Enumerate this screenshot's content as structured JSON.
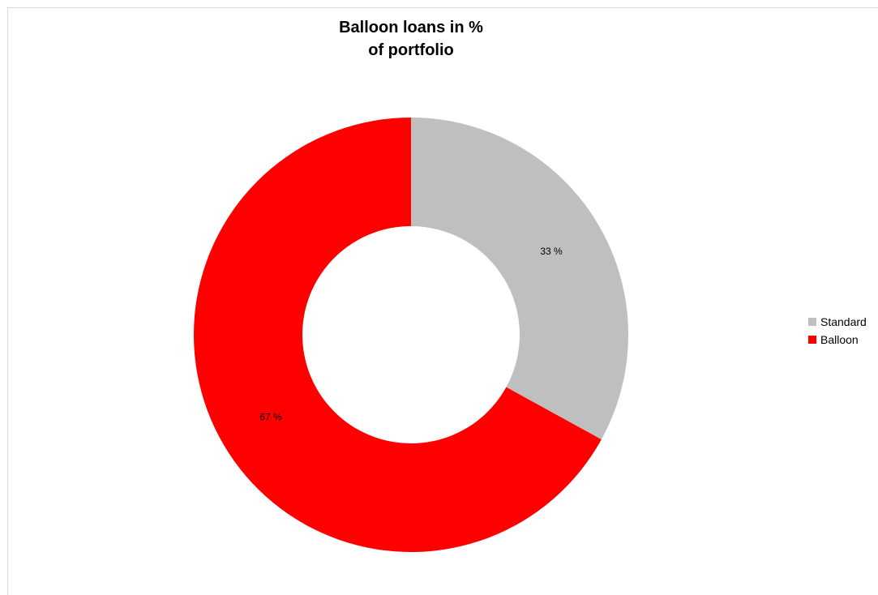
{
  "chart_data": {
    "type": "pie",
    "variant": "donut",
    "title_lines": [
      "Balloon loans in %",
      "of portfolio"
    ],
    "series": [
      {
        "name": "Standard",
        "value": 33,
        "label": "33 %",
        "color": "#bfbfbf"
      },
      {
        "name": "Balloon",
        "value": 67,
        "label": "67 %",
        "color": "#ff0000"
      }
    ],
    "legend": {
      "position": "right"
    }
  }
}
